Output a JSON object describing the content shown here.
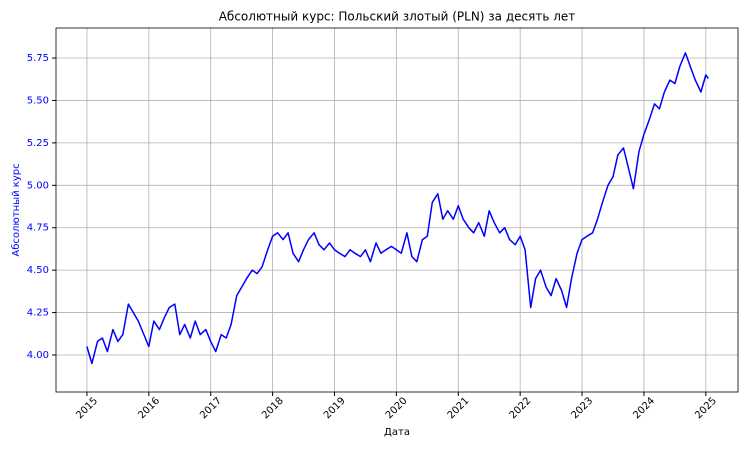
{
  "chart_data": {
    "type": "line",
    "title": "Абсолютный курс: Польский злотый (PLN) за десять лет",
    "x_label": "Дата",
    "y_label": "Абсолютный курс",
    "color": "#0000ff",
    "axis_color": "#0000ff",
    "grid": true,
    "x": [
      2015.0,
      2015.08,
      2015.17,
      2015.25,
      2015.33,
      2015.42,
      2015.5,
      2015.58,
      2015.67,
      2015.75,
      2015.83,
      2015.92,
      2016.0,
      2016.08,
      2016.17,
      2016.25,
      2016.33,
      2016.42,
      2016.5,
      2016.58,
      2016.67,
      2016.75,
      2016.83,
      2016.92,
      2017.0,
      2017.08,
      2017.17,
      2017.25,
      2017.33,
      2017.42,
      2017.5,
      2017.58,
      2017.67,
      2017.75,
      2017.83,
      2017.92,
      2018.0,
      2018.08,
      2018.17,
      2018.25,
      2018.33,
      2018.42,
      2018.5,
      2018.58,
      2018.67,
      2018.75,
      2018.83,
      2018.92,
      2019.0,
      2019.08,
      2019.17,
      2019.25,
      2019.33,
      2019.42,
      2019.5,
      2019.58,
      2019.67,
      2019.75,
      2019.83,
      2019.92,
      2020.0,
      2020.08,
      2020.17,
      2020.25,
      2020.33,
      2020.42,
      2020.5,
      2020.58,
      2020.67,
      2020.75,
      2020.83,
      2020.92,
      2021.0,
      2021.08,
      2021.17,
      2021.25,
      2021.33,
      2021.42,
      2021.5,
      2021.58,
      2021.67,
      2021.75,
      2021.83,
      2021.92,
      2022.0,
      2022.08,
      2022.17,
      2022.25,
      2022.33,
      2022.42,
      2022.5,
      2022.58,
      2022.67,
      2022.75,
      2022.83,
      2022.92,
      2023.0,
      2023.08,
      2023.17,
      2023.25,
      2023.33,
      2023.42,
      2023.5,
      2023.58,
      2023.67,
      2023.75,
      2023.83,
      2023.92,
      2024.0,
      2024.08,
      2024.17,
      2024.25,
      2024.33,
      2024.42,
      2024.5,
      2024.58,
      2024.67,
      2024.75,
      2024.83,
      2024.92,
      2025.0,
      2025.04
    ],
    "values": [
      4.05,
      3.95,
      4.08,
      4.1,
      4.02,
      4.15,
      4.08,
      4.12,
      4.3,
      4.25,
      4.2,
      4.12,
      4.05,
      4.2,
      4.15,
      4.22,
      4.28,
      4.3,
      4.12,
      4.18,
      4.1,
      4.2,
      4.12,
      4.15,
      4.08,
      4.02,
      4.12,
      4.1,
      4.18,
      4.35,
      4.4,
      4.45,
      4.5,
      4.48,
      4.52,
      4.62,
      4.7,
      4.72,
      4.68,
      4.72,
      4.6,
      4.55,
      4.62,
      4.68,
      4.72,
      4.65,
      4.62,
      4.66,
      4.62,
      4.6,
      4.58,
      4.62,
      4.6,
      4.58,
      4.62,
      4.55,
      4.66,
      4.6,
      4.62,
      4.64,
      4.62,
      4.6,
      4.72,
      4.58,
      4.55,
      4.68,
      4.7,
      4.9,
      4.95,
      4.8,
      4.85,
      4.8,
      4.88,
      4.8,
      4.75,
      4.72,
      4.78,
      4.7,
      4.85,
      4.78,
      4.72,
      4.75,
      4.68,
      4.65,
      4.7,
      4.62,
      4.28,
      4.45,
      4.5,
      4.4,
      4.35,
      4.45,
      4.38,
      4.28,
      4.45,
      4.6,
      4.68,
      4.7,
      4.72,
      4.8,
      4.9,
      5.0,
      5.05,
      5.18,
      5.22,
      5.1,
      4.98,
      5.2,
      5.3,
      5.38,
      5.48,
      5.45,
      5.55,
      5.62,
      5.6,
      5.7,
      5.78,
      5.7,
      5.62,
      5.55,
      5.65,
      5.63
    ],
    "xlim": [
      2014.5,
      2025.52
    ],
    "ylim": [
      3.782,
      5.927
    ],
    "xticks": [
      2015,
      2016,
      2017,
      2018,
      2019,
      2020,
      2021,
      2022,
      2023,
      2024,
      2025
    ],
    "yticks": [
      {
        "value": 4,
        "label": "4.00"
      },
      4.25,
      {
        "value": 4.5,
        "label": "4.50"
      },
      4.75,
      {
        "value": 5,
        "label": "5.00"
      },
      5.25,
      {
        "value": 5.5,
        "label": "5.50"
      },
      5.75
    ]
  }
}
